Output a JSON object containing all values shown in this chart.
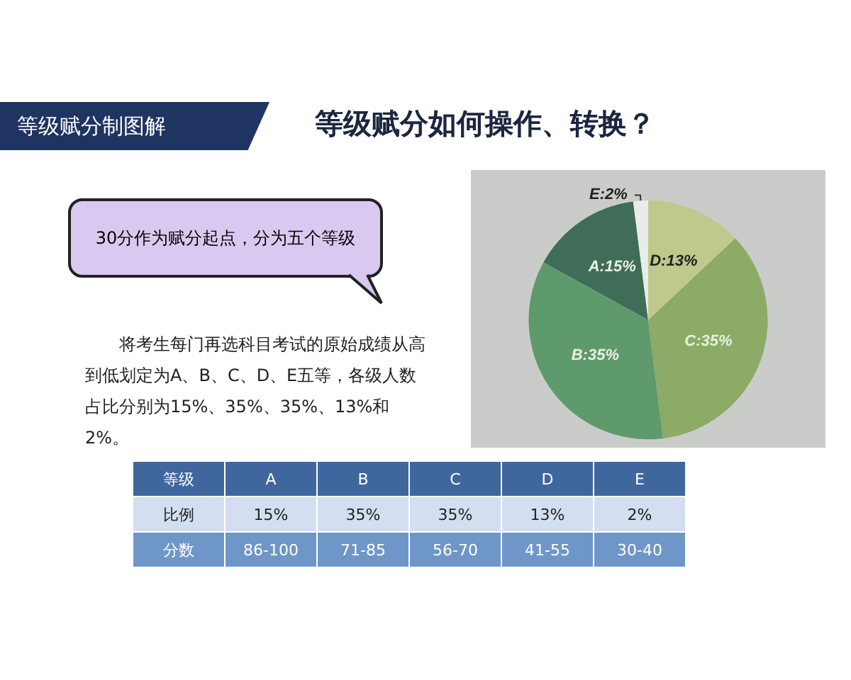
{
  "chart_data": {
    "type": "pie",
    "title": "等级赋分如何操作、转换？",
    "subtitle": "等级赋分制图解",
    "categories": [
      "A:15%",
      "B:35%",
      "C:35%",
      "D:13%",
      "E:2%"
    ],
    "values": [
      15,
      35,
      35,
      13,
      2
    ],
    "colors": [
      "#3f6d58",
      "#5f9a6d",
      "#8bab66",
      "#bfc98b",
      "#e9ece8"
    ],
    "legend": false,
    "annotations": [
      "30分作为赋分起点，分为五个等级",
      "将考生每门再选科目考试的原始成绩从高到低划定为A、B、C、D、E五等，各级人数占比分别为15%、35%、35%、13%和2%。",
      "等级",
      "A",
      "B",
      "C",
      "D",
      "E",
      "比例",
      "15%",
      "35%",
      "35%",
      "13%",
      "2%",
      "分数",
      "86-100",
      "71-85",
      "56-70",
      "41-55",
      "30-40"
    ]
  }
}
